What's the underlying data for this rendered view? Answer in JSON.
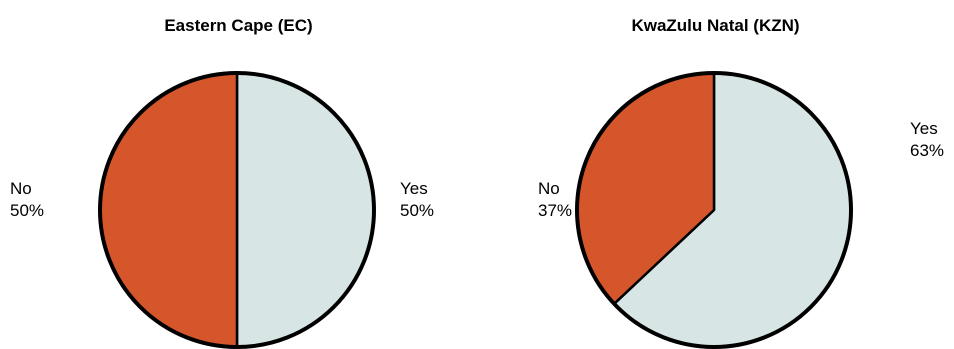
{
  "chart_data": [
    {
      "type": "pie",
      "title": "Eastern Cape (EC)",
      "slices": [
        {
          "label": "Yes",
          "value": 50,
          "value_label": "50%",
          "color": "#d7e6e5"
        },
        {
          "label": "No",
          "value": 50,
          "value_label": "50%",
          "color": "#d4562a"
        }
      ],
      "start_angle_deg": 0,
      "direction": "clockwise",
      "legend": "none"
    },
    {
      "type": "pie",
      "title": "KwaZulu Natal (KZN)",
      "slices": [
        {
          "label": "Yes",
          "value": 63,
          "value_label": "63%",
          "color": "#d7e6e5"
        },
        {
          "label": "No",
          "value": 37,
          "value_label": "37%",
          "color": "#d4562a"
        }
      ],
      "start_angle_deg": 0,
      "direction": "clockwise",
      "legend": "none"
    }
  ]
}
